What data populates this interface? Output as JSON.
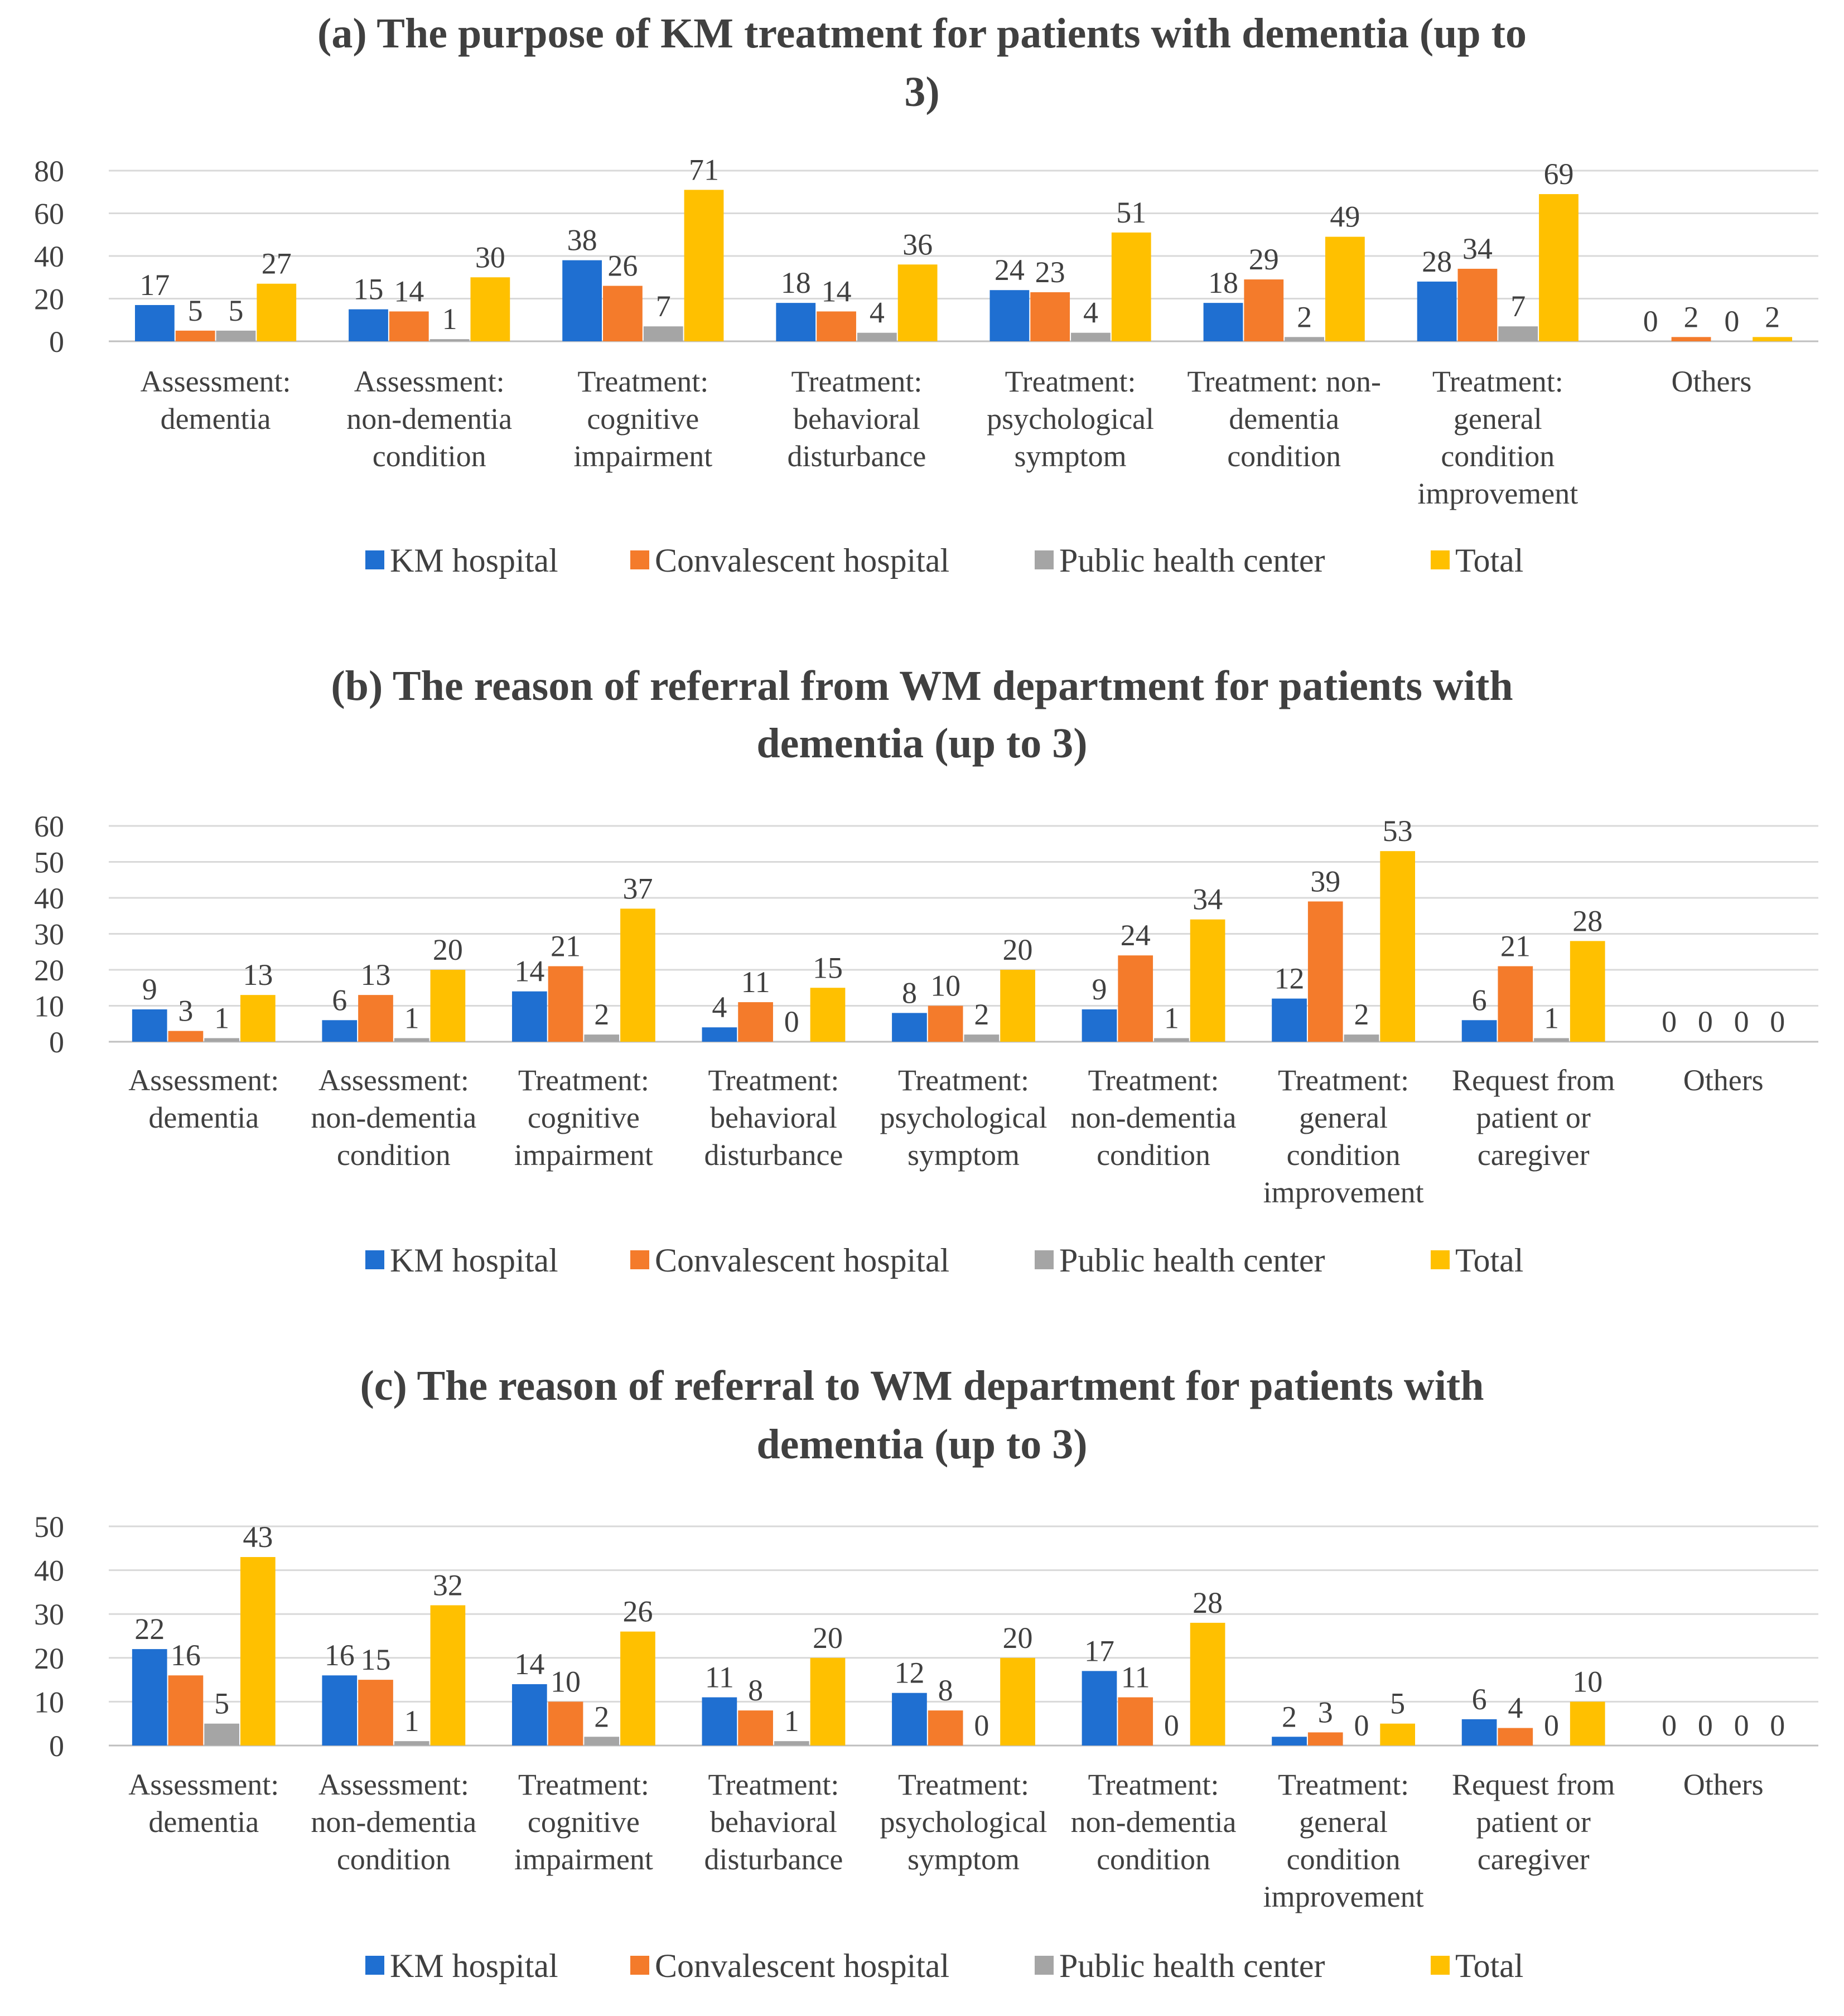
{
  "colors": {
    "km": "#1f6fd1",
    "convalescent": "#f47b2b",
    "public": "#a5a5a5",
    "total": "#ffc000"
  },
  "chart_data": [
    {
      "type": "bar",
      "title_lines": [
        "(a) The purpose of KM treatment for patients with dementia (up to",
        "3)"
      ],
      "categories": [
        [
          "Assessment:",
          "dementia"
        ],
        [
          "Assessment:",
          "non-dementia",
          "condition"
        ],
        [
          "Treatment:",
          "cognitive",
          "impairment"
        ],
        [
          "Treatment:",
          "behavioral",
          "disturbance"
        ],
        [
          "Treatment:",
          "psychological",
          "symptom"
        ],
        [
          "Treatment: non-",
          "dementia",
          "condition"
        ],
        [
          "Treatment:",
          "general",
          "condition",
          "improvement"
        ],
        [
          "Others"
        ]
      ],
      "series": [
        {
          "name": "KM hospital",
          "values": [
            17,
            15,
            38,
            18,
            24,
            18,
            28,
            0
          ]
        },
        {
          "name": "Convalescent hospital",
          "values": [
            5,
            14,
            26,
            14,
            23,
            29,
            34,
            2
          ]
        },
        {
          "name": "Public health center",
          "values": [
            5,
            1,
            7,
            4,
            4,
            2,
            7,
            0
          ]
        },
        {
          "name": "Total",
          "values": [
            27,
            30,
            71,
            36,
            51,
            49,
            69,
            2
          ]
        }
      ],
      "yticks": [
        0,
        20,
        40,
        60,
        80
      ],
      "ylim": [
        0,
        80
      ],
      "legend": "bottom"
    },
    {
      "type": "bar",
      "title_lines": [
        "(b) The reason of referral from WM department for patients with",
        "dementia (up to 3)"
      ],
      "categories": [
        [
          "Assessment:",
          "dementia"
        ],
        [
          "Assessment:",
          "non-dementia",
          "condition"
        ],
        [
          "Treatment:",
          "cognitive",
          "impairment"
        ],
        [
          "Treatment:",
          "behavioral",
          "disturbance"
        ],
        [
          "Treatment:",
          "psychological",
          "symptom"
        ],
        [
          "Treatment:",
          "non-dementia",
          "condition"
        ],
        [
          "Treatment:",
          "general",
          "condition",
          "improvement"
        ],
        [
          "Request from",
          "patient or",
          "caregiver"
        ],
        [
          "Others"
        ]
      ],
      "series": [
        {
          "name": "KM hospital",
          "values": [
            9,
            6,
            14,
            4,
            8,
            9,
            12,
            6,
            0
          ]
        },
        {
          "name": "Convalescent hospital",
          "values": [
            3,
            13,
            21,
            11,
            10,
            24,
            39,
            21,
            0
          ]
        },
        {
          "name": "Public health center",
          "values": [
            1,
            1,
            2,
            0,
            2,
            1,
            2,
            1,
            0
          ]
        },
        {
          "name": "Total",
          "values": [
            13,
            20,
            37,
            15,
            20,
            34,
            53,
            28,
            0
          ]
        }
      ],
      "yticks": [
        0,
        10,
        20,
        30,
        40,
        50,
        60
      ],
      "ylim": [
        0,
        60
      ],
      "legend": "bottom"
    },
    {
      "type": "bar",
      "title_lines": [
        "(c) The reason of referral to WM department for patients with",
        "dementia (up to 3)"
      ],
      "categories": [
        [
          "Assessment:",
          "dementia"
        ],
        [
          "Assessment:",
          "non-dementia",
          "condition"
        ],
        [
          "Treatment:",
          "cognitive",
          "impairment"
        ],
        [
          "Treatment:",
          "behavioral",
          "disturbance"
        ],
        [
          "Treatment:",
          "psychological",
          "symptom"
        ],
        [
          "Treatment:",
          "non-dementia",
          "condition"
        ],
        [
          "Treatment:",
          "general",
          "condition",
          "improvement"
        ],
        [
          "Request from",
          "patient or",
          "caregiver"
        ],
        [
          "Others"
        ]
      ],
      "series": [
        {
          "name": "KM hospital",
          "values": [
            22,
            16,
            14,
            11,
            12,
            17,
            2,
            6,
            0
          ]
        },
        {
          "name": "Convalescent hospital",
          "values": [
            16,
            15,
            10,
            8,
            8,
            11,
            3,
            4,
            0
          ]
        },
        {
          "name": "Public health center",
          "values": [
            5,
            1,
            2,
            1,
            0,
            0,
            0,
            0,
            0
          ]
        },
        {
          "name": "Total",
          "values": [
            43,
            32,
            26,
            20,
            20,
            28,
            5,
            10,
            0
          ]
        }
      ],
      "yticks": [
        0,
        10,
        20,
        30,
        40,
        50
      ],
      "ylim": [
        0,
        50
      ],
      "legend": "bottom"
    }
  ]
}
